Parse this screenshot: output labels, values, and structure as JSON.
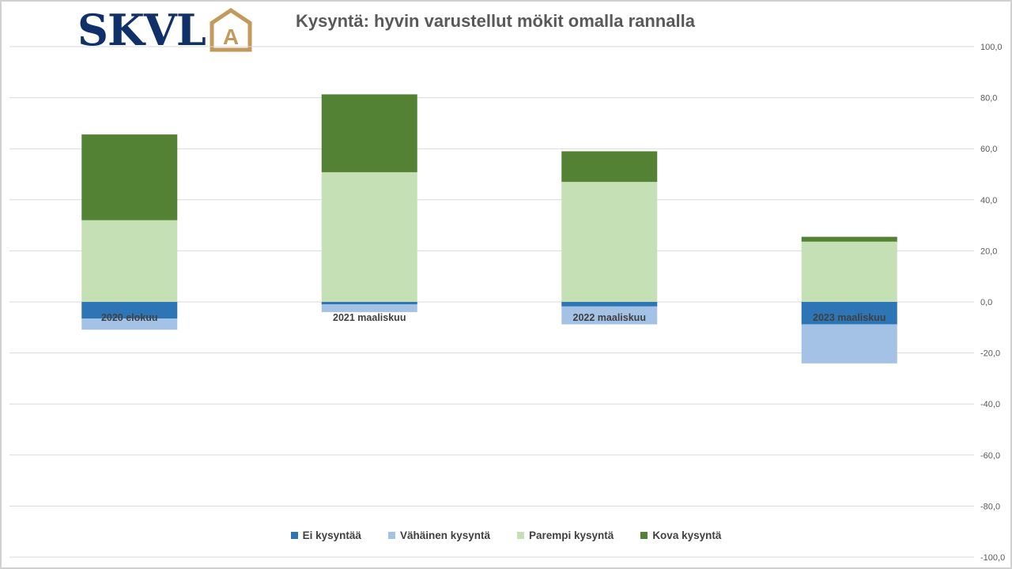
{
  "logo": {
    "text": "SKVL",
    "letter": "A",
    "text_color": "#10306a",
    "accent_color": "#c49a5c"
  },
  "chart_data": {
    "type": "bar",
    "stacked": true,
    "title": "Kysyntä: hyvin varustellut mökit omalla rannalla",
    "categories": [
      "2020 elokuu",
      "2021 maaliskuu",
      "2022 maaliskuu",
      "2023 maaliskuu"
    ],
    "series": [
      {
        "name": "Ei kysyntää",
        "color": "#2e75b6",
        "values": [
          -6.5,
          -1.0,
          -1.8,
          -8.8
        ]
      },
      {
        "name": "Vähäinen kysyntä",
        "color": "#a4c2e6",
        "values": [
          -4.4,
          -3.0,
          -7.0,
          -15.3
        ]
      },
      {
        "name": "Parempi kysyntä",
        "color": "#c5e0b4",
        "values": [
          32.0,
          50.8,
          47.0,
          23.6
        ]
      },
      {
        "name": "Kova kysyntä",
        "color": "#548235",
        "values": [
          33.6,
          30.5,
          12.0,
          1.9
        ]
      }
    ],
    "ylim": [
      -100,
      100
    ],
    "yticks": [
      "100,0",
      "80,0",
      "60,0",
      "40,0",
      "20,0",
      "0,0",
      "-20,0",
      "-40,0",
      "-60,0",
      "-80,0",
      "-100,0"
    ],
    "ytick_values": [
      100,
      80,
      60,
      40,
      20,
      0,
      -20,
      -40,
      -60,
      -80,
      -100
    ],
    "xlabel": "",
    "ylabel": "",
    "grid": true,
    "legend_position": "bottom",
    "yaxis_position": "right"
  }
}
